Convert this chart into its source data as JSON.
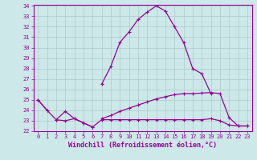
{
  "xlabel": "Windchill (Refroidissement éolien,°C)",
  "bg_color": "#cce8e8",
  "line_color": "#990099",
  "grid_color": "#aacccc",
  "hours": [
    0,
    1,
    2,
    3,
    4,
    5,
    6,
    7,
    8,
    9,
    10,
    11,
    12,
    13,
    14,
    15,
    16,
    17,
    18,
    19,
    20,
    21,
    22,
    23
  ],
  "curve1": [
    25.0,
    24.0,
    null,
    null,
    null,
    null,
    null,
    26.5,
    28.2,
    30.5,
    31.5,
    32.7,
    33.4,
    34.0,
    33.5,
    32.0,
    30.5,
    28.0,
    27.5,
    25.6,
    null,
    null,
    null,
    null
  ],
  "curve2": [
    null,
    null,
    23.1,
    23.0,
    23.2,
    22.8,
    22.4,
    23.1,
    23.1,
    23.1,
    23.1,
    23.1,
    23.1,
    23.1,
    23.1,
    23.1,
    23.1,
    23.1,
    23.1,
    23.2,
    23.0,
    22.6,
    22.5,
    22.5
  ],
  "curve3": [
    null,
    null,
    null,
    null,
    null,
    null,
    null,
    23.2,
    23.5,
    23.9,
    24.2,
    24.5,
    24.8,
    25.1,
    25.3,
    25.5,
    25.6,
    25.6,
    25.65,
    25.7,
    25.6,
    23.3,
    22.5,
    22.5
  ],
  "curve4_a": [
    25.0,
    24.0,
    23.1,
    23.9,
    23.2,
    22.8,
    22.4,
    null,
    null,
    null,
    null,
    null,
    null,
    null,
    null,
    null,
    null,
    null,
    null,
    null,
    null,
    null,
    null,
    null
  ],
  "ylim_min": 22,
  "ylim_max": 34,
  "yticks": [
    22,
    23,
    24,
    25,
    26,
    27,
    28,
    29,
    30,
    31,
    32,
    33,
    34
  ],
  "xticks": [
    0,
    1,
    2,
    3,
    4,
    5,
    6,
    7,
    8,
    9,
    10,
    11,
    12,
    13,
    14,
    15,
    16,
    17,
    18,
    19,
    20,
    21,
    22,
    23
  ],
  "xlabel_fontsize": 6,
  "tick_fontsize": 5,
  "linewidth": 0.9,
  "markersize": 3
}
